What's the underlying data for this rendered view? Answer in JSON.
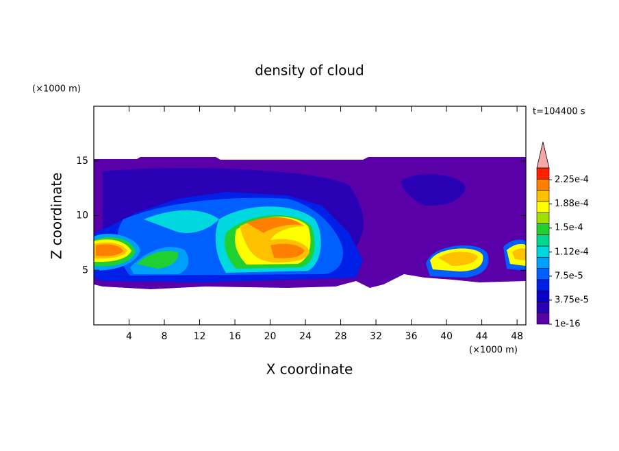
{
  "chart_data": {
    "type": "contour",
    "title": "density of cloud",
    "xlabel": "X coordinate",
    "ylabel": "Z coordinate",
    "xunit": "(×1000 m)",
    "yunit": "(×1000 m)",
    "annotation": "t=104400 s",
    "xlim": [
      0,
      49
    ],
    "xticks": [
      4,
      8,
      12,
      16,
      20,
      24,
      28,
      32,
      36,
      40,
      44,
      48
    ],
    "ylim": [
      0,
      20
    ],
    "yticks": [
      5,
      10,
      15
    ],
    "clim": [
      0,
      0.00024375
    ],
    "level_colors": [
      "#5a00a8",
      "#2a00b4",
      "#0a00c8",
      "#0020e8",
      "#0060ff",
      "#00a0ff",
      "#00d8e0",
      "#00d890",
      "#20d030",
      "#a0e000",
      "#ffff00",
      "#ffc000",
      "#ff8000",
      "#ff2000"
    ],
    "extend_color": "#f4a8a8",
    "cticks": [
      {
        "value": 1e-16,
        "label": "1e-16"
      },
      {
        "value": 3.75e-05,
        "label": "3.75e-5"
      },
      {
        "value": 7.5e-05,
        "label": "7.5e-5"
      },
      {
        "value": 0.0001125,
        "label": "1.12e-4"
      },
      {
        "value": 0.00015,
        "label": "1.5e-4"
      },
      {
        "value": 0.0001875,
        "label": "1.88e-4"
      },
      {
        "value": 0.000225,
        "label": "2.25e-4"
      }
    ]
  }
}
